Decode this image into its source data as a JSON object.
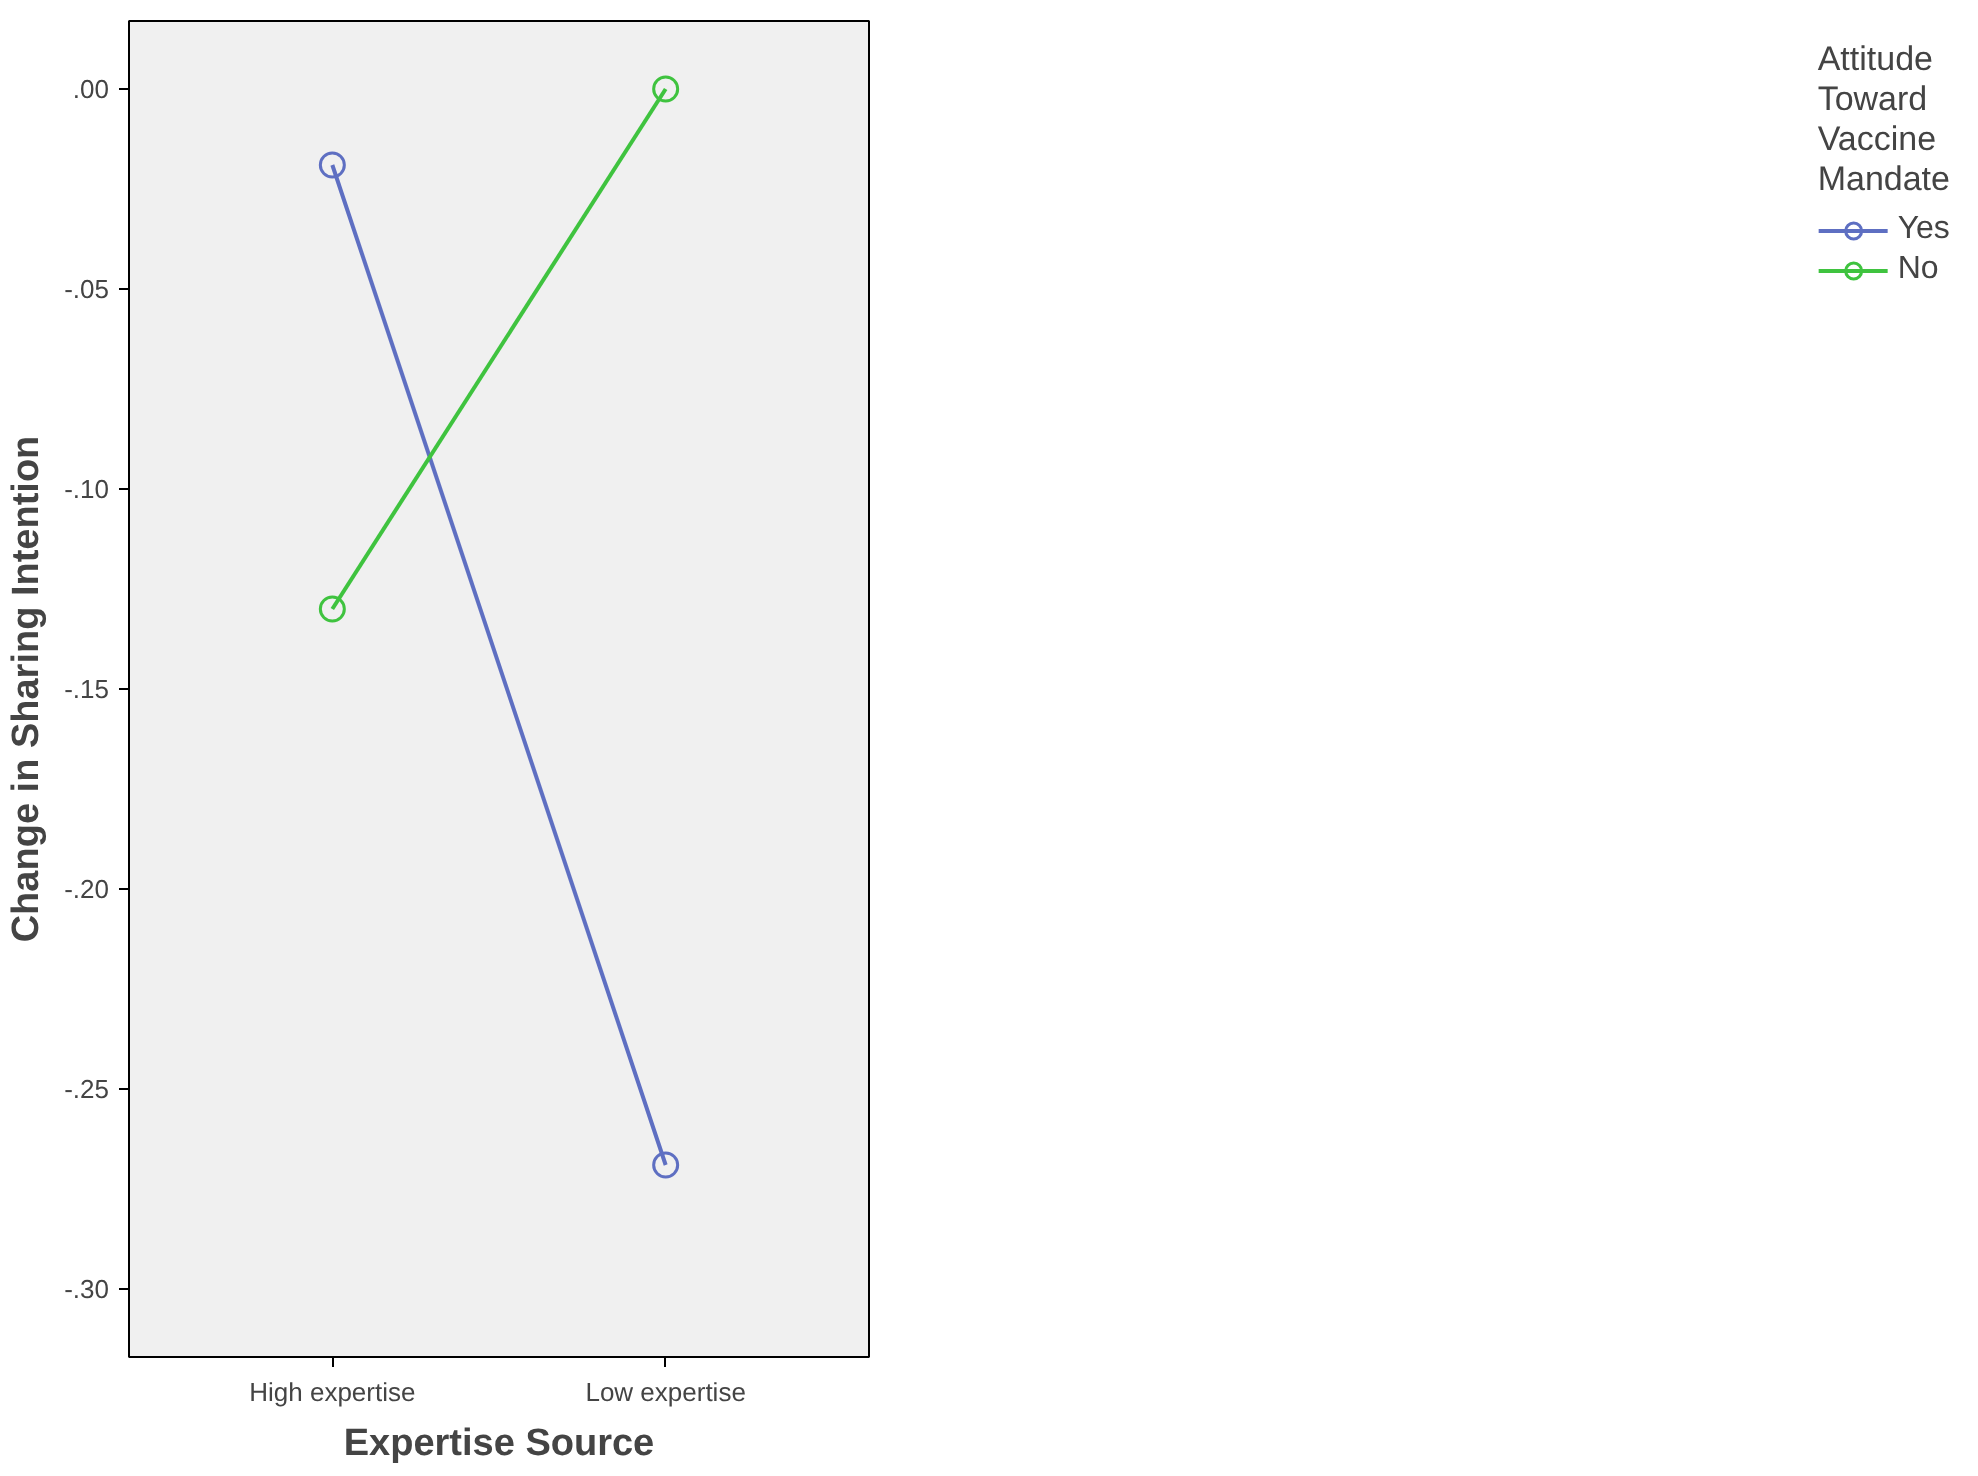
{
  "chart_data": {
    "type": "line",
    "xlabel": "Expertise Source",
    "ylabel": "Change in Sharing Intention",
    "legend_title": "Attitude Toward Vaccine Mandate",
    "categories": [
      "High expertise",
      "Low expertise"
    ],
    "series": [
      {
        "name": "Yes",
        "color": "#5e6fc2",
        "values": [
          -0.019,
          -0.269
        ]
      },
      {
        "name": "No",
        "color": "#3fc33f",
        "values": [
          -0.13,
          0.0
        ]
      }
    ],
    "ylim": [
      -0.317,
      0.017
    ],
    "yticks": [
      {
        "value": 0,
        "label": ".00"
      },
      {
        "value": -0.05,
        "label": "-.05"
      },
      {
        "value": -0.1,
        "label": "-.10"
      },
      {
        "value": -0.15,
        "label": "-.15"
      },
      {
        "value": -0.2,
        "label": "-.20"
      },
      {
        "value": -0.25,
        "label": "-.25"
      },
      {
        "value": -0.3,
        "label": "-.30"
      }
    ],
    "marker": "circle",
    "line_style": "solid",
    "grid": false,
    "legend": "right"
  }
}
